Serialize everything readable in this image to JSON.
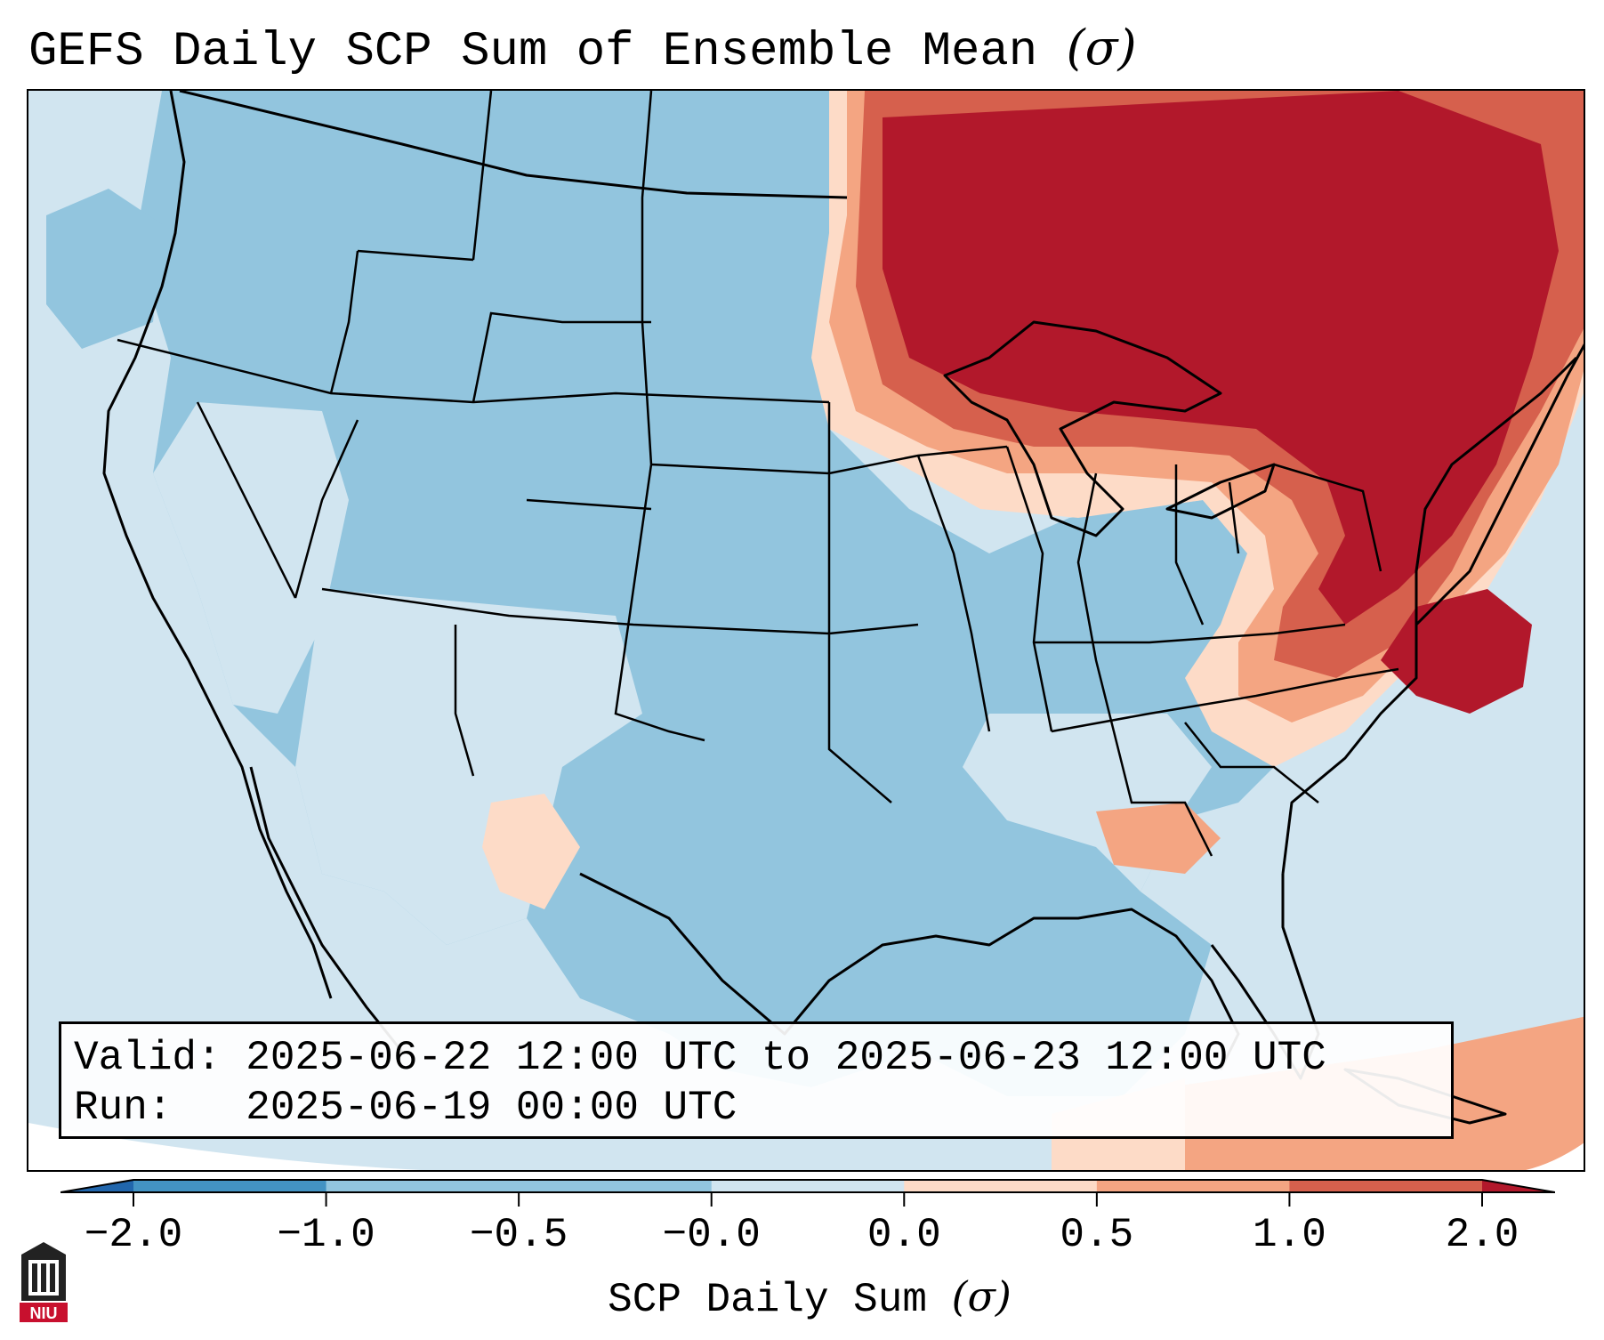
{
  "title": "GEFS Daily SCP Sum of Ensemble Mean",
  "title_symbol": "(σ)",
  "info": {
    "valid_label": "Valid:",
    "valid_value": "2025-06-22 12:00 UTC to 2025-06-23 12:00 UTC",
    "run_label": "Run:",
    "run_value": "2025-06-19 00:00 UTC"
  },
  "colorbar": {
    "label": "SCP Daily Sum",
    "label_symbol": "(σ)",
    "ticks": [
      "−2.0",
      "−1.0",
      "−0.5",
      "−0.0",
      "0.0",
      "0.5",
      "1.0",
      "2.0"
    ],
    "bins": [
      {
        "color": "#4393c3"
      },
      {
        "color": "#92c5de"
      },
      {
        "color": "#92c5de"
      },
      {
        "color": "#d1e5f0"
      },
      {
        "color": "#fddbc7"
      },
      {
        "color": "#f4a582"
      },
      {
        "color": "#d6604d"
      }
    ],
    "under_color": "#2166ac",
    "over_color": "#b2182b"
  },
  "colors": {
    "background_field": "#d1e5f0",
    "light_blue": "#92c5de",
    "strong_red": "#b2182b",
    "mid_red": "#d6604d",
    "light_red": "#f4a582",
    "pale_red": "#fddbc7"
  },
  "logo": {
    "name": "NIU logo",
    "text": "NIU"
  }
}
